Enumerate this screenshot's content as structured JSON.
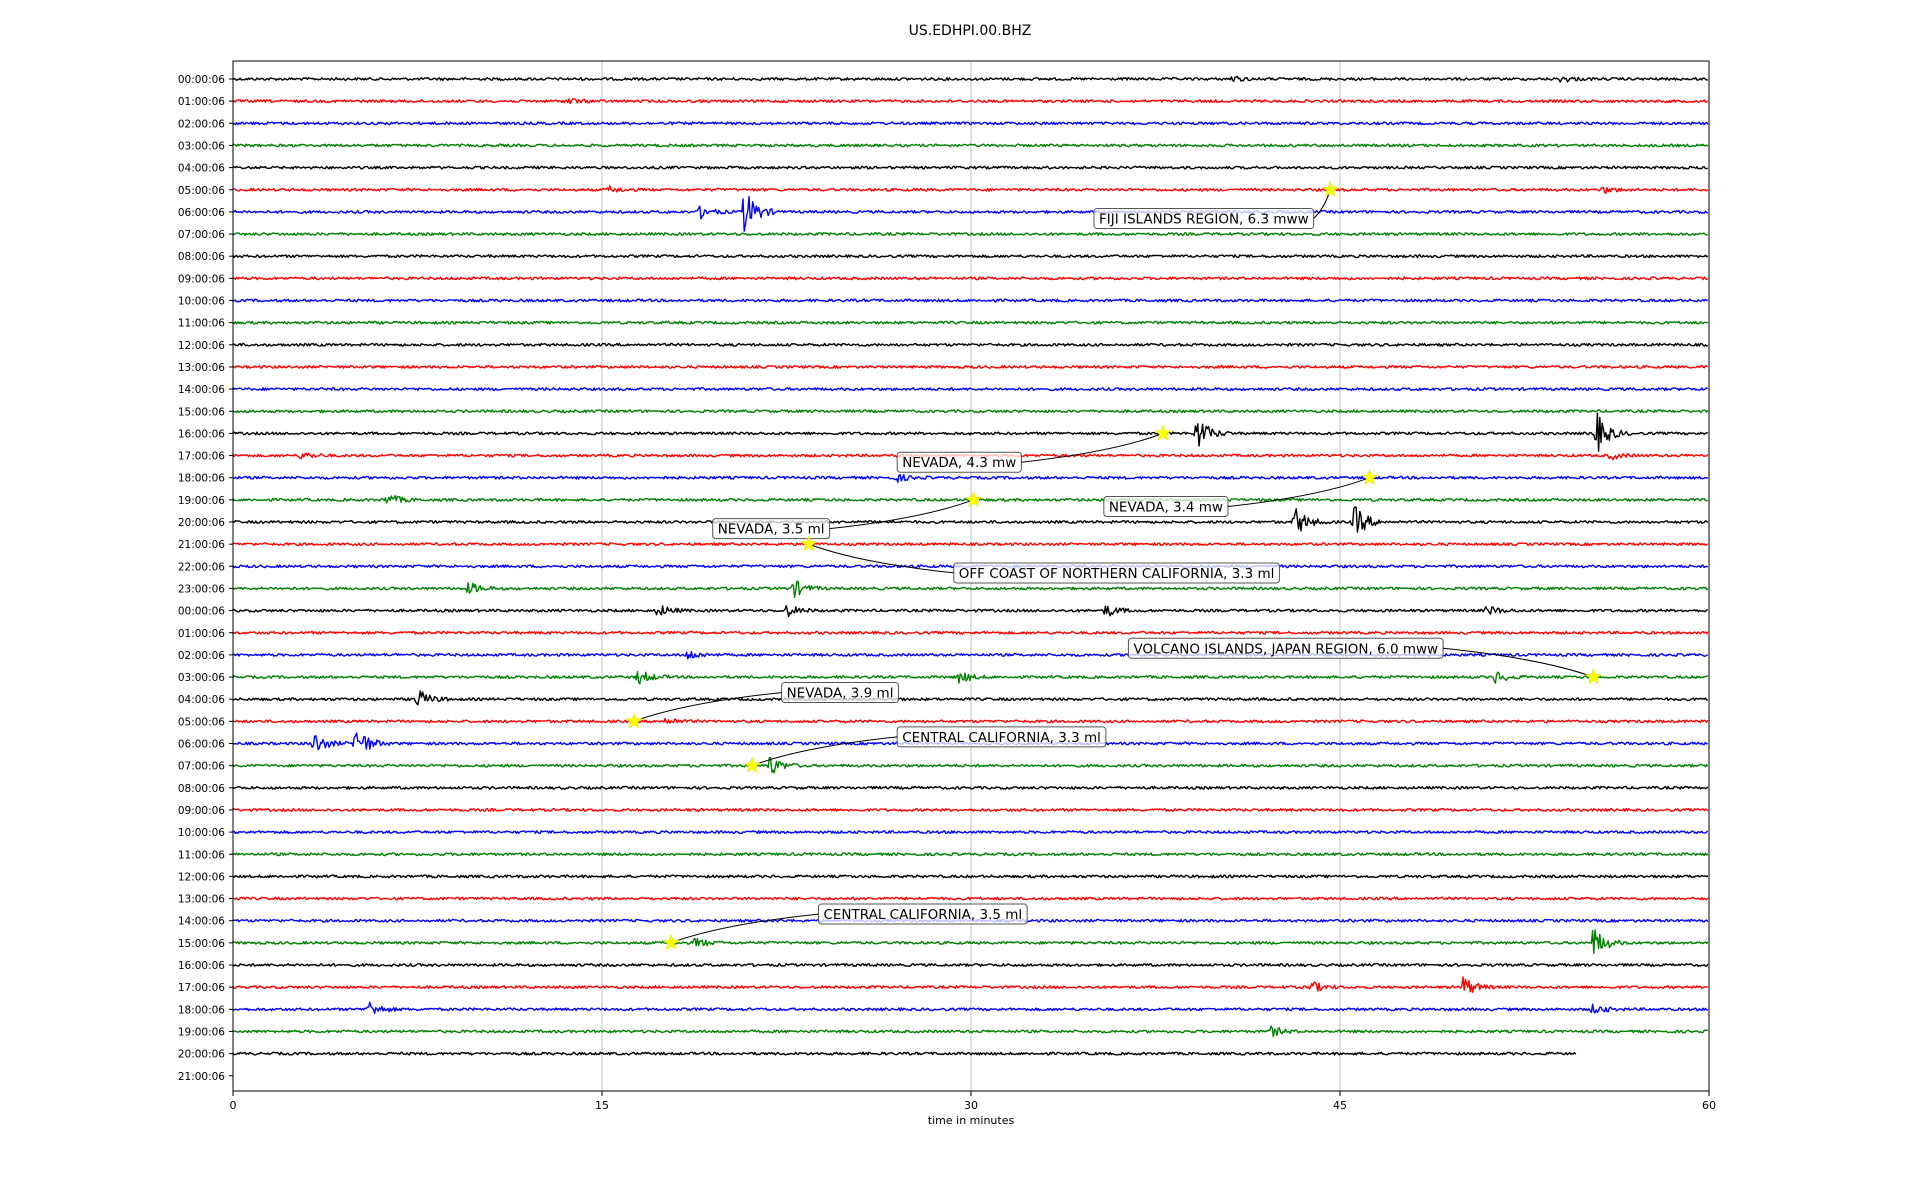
{
  "chart_data": {
    "type": "line",
    "title": "US.EDHPI.00.BHZ",
    "xlabel": "time in minutes",
    "ylabel": "",
    "xlim": [
      0,
      60
    ],
    "xticks": [
      0,
      15,
      30,
      45,
      60
    ],
    "grid": "vertical",
    "line_colors": [
      "#000000",
      "#ff0000",
      "#0000ff",
      "#008000"
    ],
    "event_marker_color": "#ffff00",
    "rows": [
      "00:00:06",
      "01:00:06",
      "02:00:06",
      "03:00:06",
      "04:00:06",
      "05:00:06",
      "06:00:06",
      "07:00:06",
      "08:00:06",
      "09:00:06",
      "10:00:06",
      "11:00:06",
      "12:00:06",
      "13:00:06",
      "14:00:06",
      "15:00:06",
      "16:00:06",
      "17:00:06",
      "18:00:06",
      "19:00:06",
      "20:00:06",
      "21:00:06",
      "22:00:06",
      "23:00:06",
      "00:00:06",
      "01:00:06",
      "02:00:06",
      "03:00:06",
      "04:00:06",
      "05:00:06",
      "06:00:06",
      "07:00:06",
      "08:00:06",
      "09:00:06",
      "10:00:06",
      "11:00:06",
      "12:00:06",
      "13:00:06",
      "14:00:06",
      "15:00:06",
      "16:00:06",
      "17:00:06",
      "18:00:06",
      "19:00:06",
      "20:00:06",
      "21:00:06"
    ],
    "last_trace_end_minute": 54.6,
    "bursts": [
      {
        "row": 0,
        "minute": 54.0,
        "amp": 0.25
      },
      {
        "row": 0,
        "minute": 40.6,
        "amp": 0.2
      },
      {
        "row": 1,
        "minute": 13.6,
        "amp": 0.25
      },
      {
        "row": 5,
        "minute": 15.3,
        "amp": 0.25
      },
      {
        "row": 5,
        "minute": 55.7,
        "amp": 0.25
      },
      {
        "row": 6,
        "minute": 19.0,
        "amp": 0.5
      },
      {
        "row": 6,
        "minute": 20.8,
        "amp": 1.9
      },
      {
        "row": 16,
        "minute": 39.2,
        "amp": 1.4
      },
      {
        "row": 16,
        "minute": 55.4,
        "amp": 1.8
      },
      {
        "row": 17,
        "minute": 2.8,
        "amp": 0.3
      },
      {
        "row": 17,
        "minute": 56.0,
        "amp": 0.3
      },
      {
        "row": 18,
        "minute": 27.0,
        "amp": 0.3
      },
      {
        "row": 19,
        "minute": 6.3,
        "amp": 0.5
      },
      {
        "row": 20,
        "minute": 43.2,
        "amp": 1.2
      },
      {
        "row": 20,
        "minute": 45.6,
        "amp": 1.4
      },
      {
        "row": 23,
        "minute": 9.6,
        "amp": 0.5
      },
      {
        "row": 23,
        "minute": 22.8,
        "amp": 0.7
      },
      {
        "row": 24,
        "minute": 17.3,
        "amp": 0.5
      },
      {
        "row": 24,
        "minute": 22.5,
        "amp": 0.5
      },
      {
        "row": 24,
        "minute": 35.5,
        "amp": 0.5
      },
      {
        "row": 24,
        "minute": 51.0,
        "amp": 0.4
      },
      {
        "row": 26,
        "minute": 18.5,
        "amp": 0.4
      },
      {
        "row": 27,
        "minute": 16.5,
        "amp": 0.6
      },
      {
        "row": 27,
        "minute": 29.5,
        "amp": 0.5
      },
      {
        "row": 27,
        "minute": 51.3,
        "amp": 0.5
      },
      {
        "row": 28,
        "minute": 7.5,
        "amp": 0.8
      },
      {
        "row": 29,
        "minute": 17.6,
        "amp": 0.3
      },
      {
        "row": 30,
        "minute": 3.3,
        "amp": 0.9
      },
      {
        "row": 30,
        "minute": 5.0,
        "amp": 1.5
      },
      {
        "row": 31,
        "minute": 21.8,
        "amp": 0.9
      },
      {
        "row": 39,
        "minute": 18.8,
        "amp": 0.4
      },
      {
        "row": 39,
        "minute": 55.3,
        "amp": 1.3
      },
      {
        "row": 41,
        "minute": 43.8,
        "amp": 0.5
      },
      {
        "row": 41,
        "minute": 50.0,
        "amp": 0.9
      },
      {
        "row": 42,
        "minute": 5.5,
        "amp": 0.7
      },
      {
        "row": 42,
        "minute": 55.3,
        "amp": 0.4
      },
      {
        "row": 43,
        "minute": 42.2,
        "amp": 0.4
      }
    ],
    "events": [
      {
        "label": "FIJI ISLANDS REGION, 6.3 mww",
        "row": 5,
        "minute": 44.6,
        "label_minute": 35.0,
        "label_row": 6.3
      },
      {
        "label": "NEVADA, 4.3 mw",
        "row": 16,
        "minute": 37.8,
        "label_minute": 27.0,
        "label_row": 17.3
      },
      {
        "label": "NEVADA, 3.4 mw",
        "row": 18,
        "minute": 46.2,
        "label_minute": 35.4,
        "label_row": 19.3
      },
      {
        "label": "NEVADA, 3.5 ml",
        "row": 19,
        "minute": 30.1,
        "label_minute": 19.5,
        "label_row": 20.3
      },
      {
        "label": "OFF COAST OF NORTHERN CALIFORNIA, 3.3 ml",
        "row": 21,
        "minute": 23.4,
        "label_minute": 29.3,
        "label_row": 22.3
      },
      {
        "label": "VOLCANO ISLANDS, JAPAN REGION, 6.0 mww",
        "row": 27,
        "minute": 55.3,
        "label_minute": 36.4,
        "label_row": 25.7
      },
      {
        "label": "NEVADA, 3.9 ml",
        "row": 29,
        "minute": 16.3,
        "label_minute": 22.3,
        "label_row": 27.7
      },
      {
        "label": "CENTRAL CALIFORNIA, 3.3 ml",
        "row": 31,
        "minute": 21.1,
        "label_minute": 27.0,
        "label_row": 29.7
      },
      {
        "label": "CENTRAL CALIFORNIA, 3.5 ml",
        "row": 39,
        "minute": 17.8,
        "label_minute": 23.8,
        "label_row": 37.7
      }
    ]
  }
}
